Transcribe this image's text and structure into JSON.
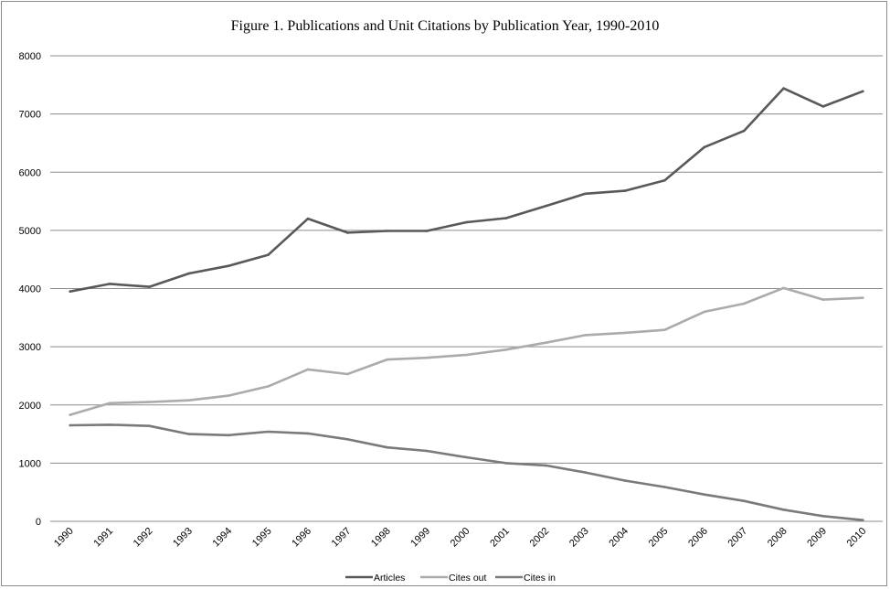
{
  "chart_data": {
    "type": "line",
    "title": "Figure 1. Publications and Unit Citations by Publication Year, 1990-2010",
    "xlabel": "",
    "ylabel": "",
    "categories": [
      "1990",
      "1991",
      "1992",
      "1993",
      "1994",
      "1995",
      "1996",
      "1997",
      "1998",
      "1999",
      "2000",
      "2001",
      "2002",
      "2003",
      "2004",
      "2005",
      "2006",
      "2007",
      "2008",
      "2009",
      "2010"
    ],
    "ylim": [
      0,
      8000
    ],
    "yticks": [
      0,
      1000,
      2000,
      3000,
      4000,
      5000,
      6000,
      7000,
      8000
    ],
    "grid": true,
    "legend": "bottom",
    "series": [
      {
        "name": "Articles",
        "color": "#595959",
        "values": [
          3950,
          4080,
          4030,
          4260,
          4390,
          4580,
          5200,
          4960,
          4990,
          4990,
          5140,
          5210,
          5420,
          5630,
          5680,
          5860,
          6430,
          6710,
          7440,
          7130,
          7390
        ]
      },
      {
        "name": "Cites out",
        "color": "#ababab",
        "values": [
          1830,
          2030,
          2050,
          2080,
          2160,
          2320,
          2610,
          2530,
          2780,
          2810,
          2860,
          2950,
          3070,
          3200,
          3240,
          3290,
          3600,
          3740,
          4010,
          3810,
          3840
        ]
      },
      {
        "name": "Cites in",
        "color": "#7a7a7a",
        "values": [
          1650,
          1660,
          1640,
          1500,
          1480,
          1540,
          1510,
          1410,
          1270,
          1210,
          1100,
          1000,
          960,
          840,
          700,
          590,
          460,
          350,
          200,
          90,
          20
        ]
      }
    ]
  }
}
